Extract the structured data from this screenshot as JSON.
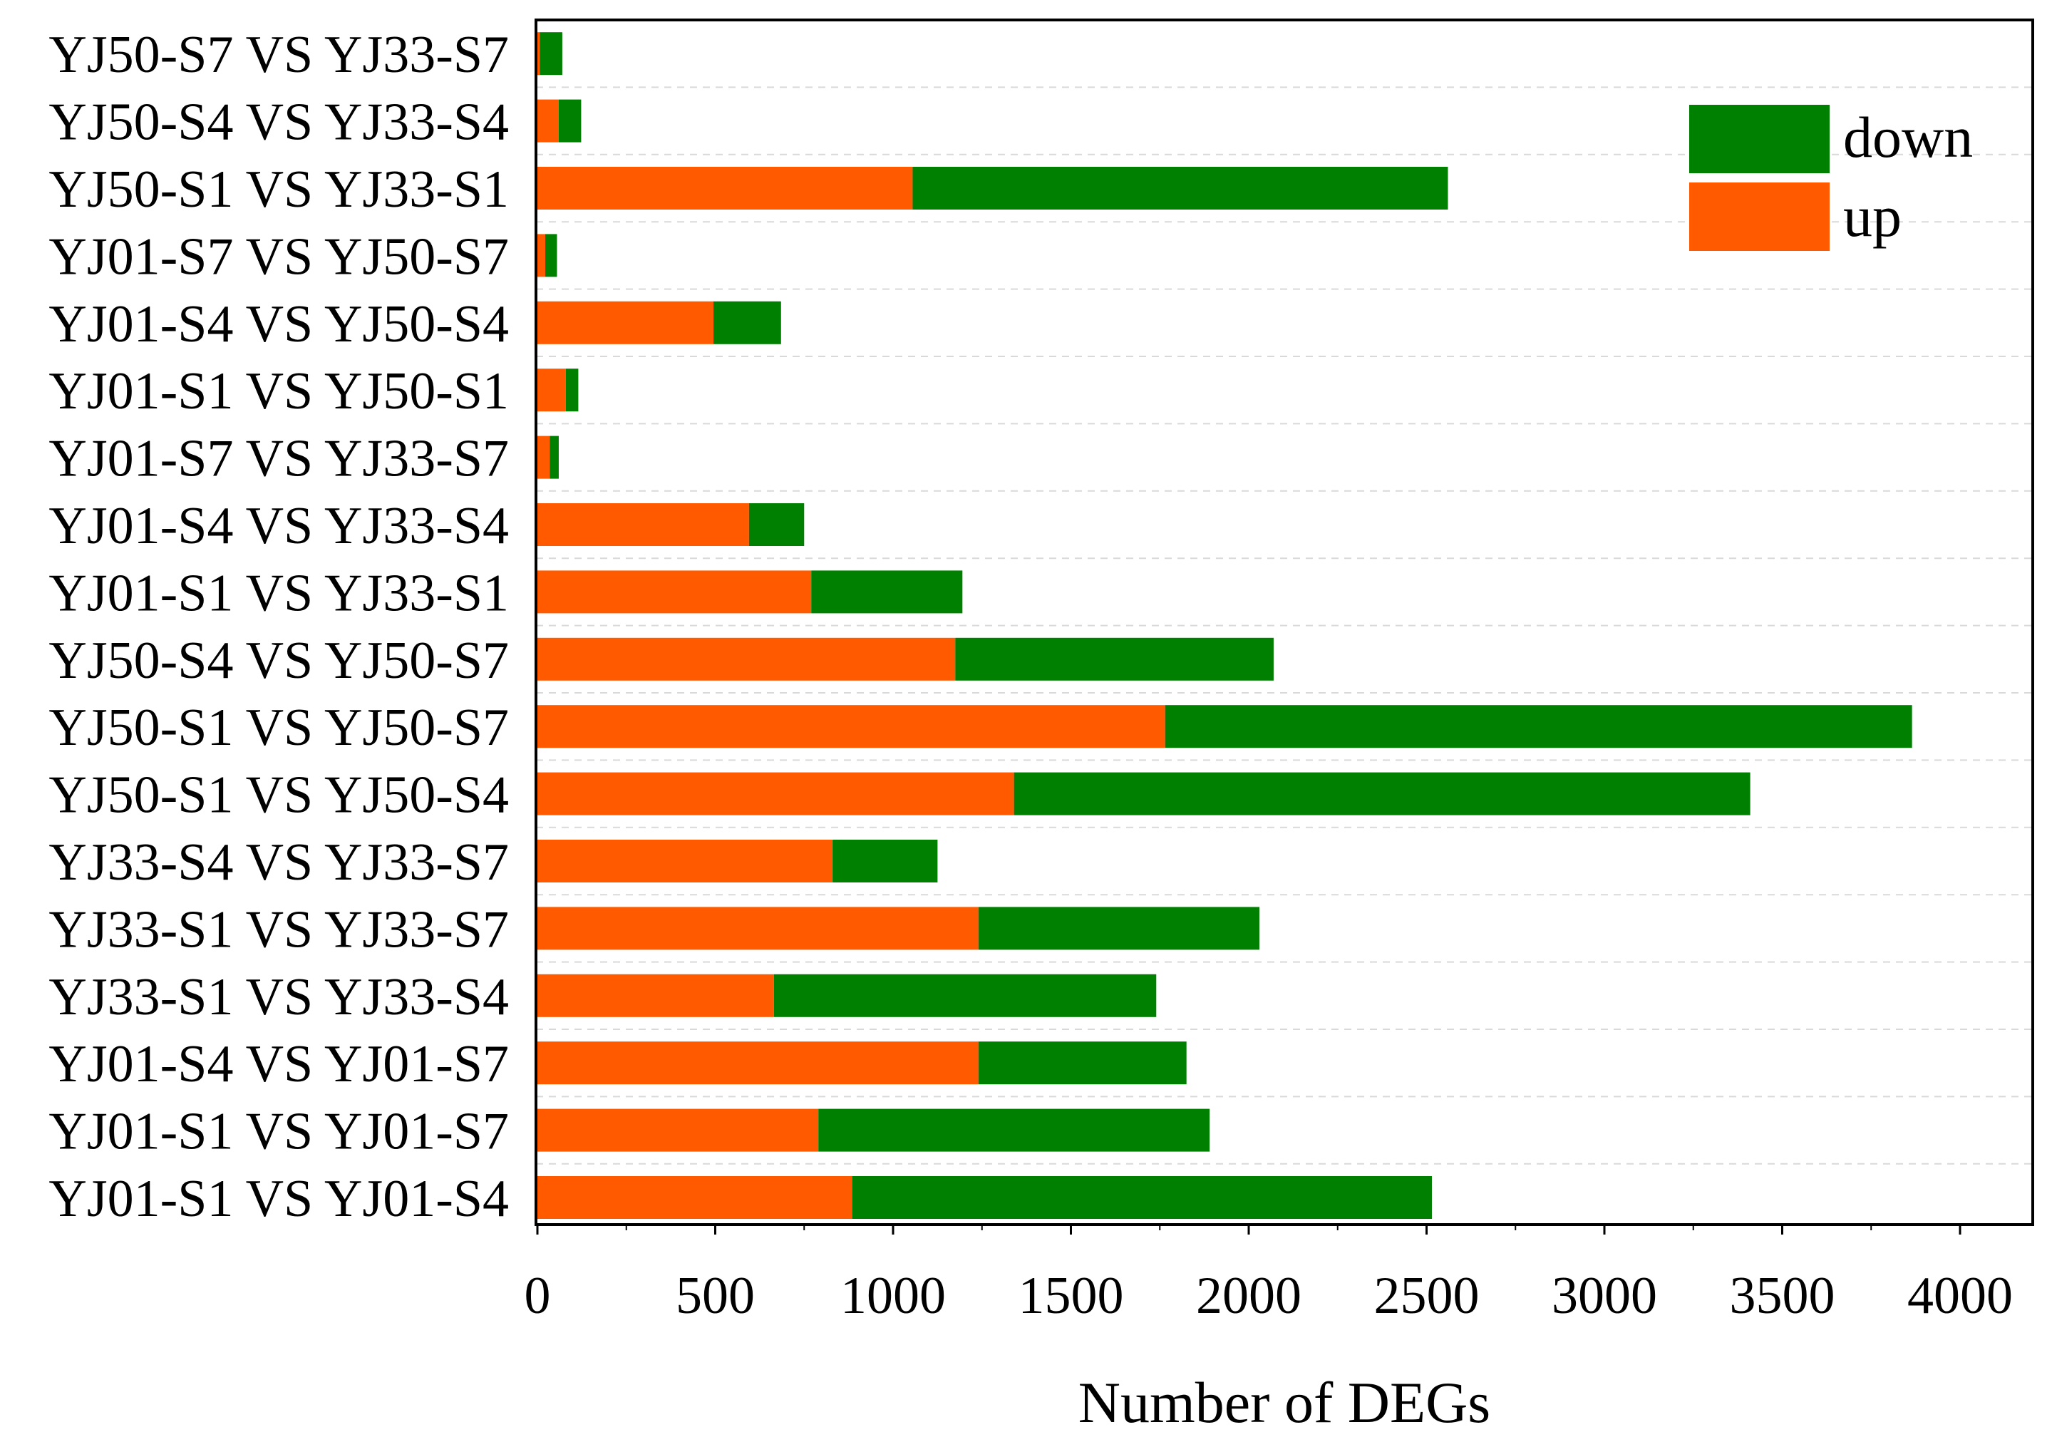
{
  "chart_data": {
    "type": "bar",
    "orientation": "horizontal",
    "stacked": true,
    "title": "",
    "xlabel": "Number of DEGs",
    "ylabel": "",
    "xlim": [
      0,
      4200
    ],
    "xticks": [
      0,
      500,
      1000,
      1500,
      2000,
      2500,
      3000,
      3500,
      4000
    ],
    "grid": "horizontal dashed",
    "legend_position": "top-right",
    "categories": [
      "YJ50-S7 VS YJ33-S7",
      "YJ50-S4 VS YJ33-S4",
      "YJ50-S1 VS YJ33-S1",
      "YJ01-S7 VS YJ50-S7",
      "YJ01-S4 VS YJ50-S4",
      "YJ01-S1 VS YJ50-S1",
      "YJ01-S7 VS YJ33-S7",
      "YJ01-S4 VS YJ33-S4",
      "YJ01-S1 VS YJ33-S1",
      "YJ50-S4 VS YJ50-S7",
      "YJ50-S1 VS YJ50-S7",
      "YJ50-S1 VS YJ50-S4",
      "YJ33-S4 VS YJ33-S7",
      "YJ33-S1 VS YJ33-S7",
      "YJ33-S1 VS YJ33-S4",
      "YJ01-S4 VS YJ01-S7",
      "YJ01-S1 VS YJ01-S7",
      "YJ01-S1 VS YJ01-S4"
    ],
    "series": [
      {
        "name": "up",
        "color": "#FF5A00",
        "values": [
          7,
          60,
          1055,
          22,
          495,
          80,
          35,
          595,
          770,
          1175,
          1765,
          1340,
          830,
          1240,
          665,
          1240,
          790,
          885
        ]
      },
      {
        "name": "down",
        "color": "#008000",
        "values": [
          63,
          63,
          1505,
          33,
          190,
          35,
          25,
          155,
          425,
          895,
          2100,
          2070,
          295,
          790,
          1075,
          585,
          1100,
          1630
        ]
      }
    ],
    "legend": [
      {
        "name": "down",
        "color": "#008000"
      },
      {
        "name": "up",
        "color": "#FF5A00"
      }
    ]
  }
}
